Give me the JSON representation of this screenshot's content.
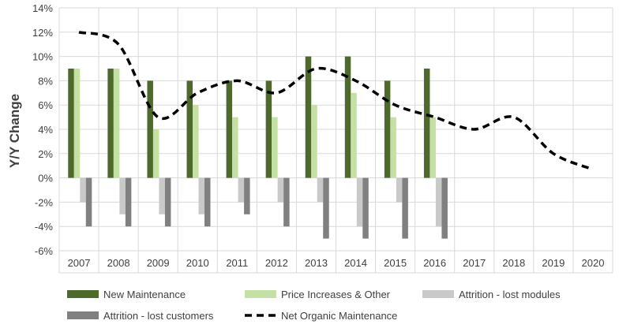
{
  "chart_data": {
    "type": "bar",
    "title": "",
    "xlabel": "",
    "ylabel": "Y/Y Change",
    "ylim": [
      -6,
      14
    ],
    "ytick_step": 2,
    "ytick_labels": [
      "-6%",
      "-4%",
      "-2%",
      "0%",
      "2%",
      "4%",
      "6%",
      "8%",
      "10%",
      "12%",
      "14%"
    ],
    "grid": true,
    "categories": [
      "2007",
      "2008",
      "2009",
      "2010",
      "2011",
      "2012",
      "2013",
      "2014",
      "2015",
      "2016",
      "2017",
      "2018",
      "2019",
      "2020"
    ],
    "series": [
      {
        "name": "New Maintenance",
        "kind": "bar",
        "color": "#4e6a2a",
        "values": [
          9,
          9,
          8,
          8,
          8,
          8,
          10,
          10,
          8,
          9,
          null,
          null,
          null,
          null
        ]
      },
      {
        "name": "Price Increases & Other",
        "kind": "bar",
        "color": "#c5e0a5",
        "values": [
          9,
          9,
          4,
          6,
          5,
          5,
          6,
          7,
          5,
          5,
          null,
          null,
          null,
          null
        ]
      },
      {
        "name": "Attrition - lost modules",
        "kind": "bar",
        "color": "#c9c9c9",
        "values": [
          -2,
          -3,
          -3,
          -3,
          -2,
          -2,
          -2,
          -4,
          -2,
          -4,
          null,
          null,
          null,
          null
        ]
      },
      {
        "name": "Attrition - lost customers",
        "kind": "bar",
        "color": "#808080",
        "values": [
          -4,
          -4,
          -4,
          -4,
          -3,
          -4,
          -5,
          -5,
          -5,
          -5,
          null,
          null,
          null,
          null
        ]
      },
      {
        "name": "Net Organic Maintenance",
        "kind": "line",
        "style": "dashed",
        "color": "#000000",
        "values": [
          12,
          11,
          5,
          7,
          8,
          7,
          9,
          8,
          6,
          5,
          4,
          5,
          2,
          0.7
        ]
      }
    ],
    "legend": {
      "position": "bottom",
      "columns": 3
    }
  }
}
